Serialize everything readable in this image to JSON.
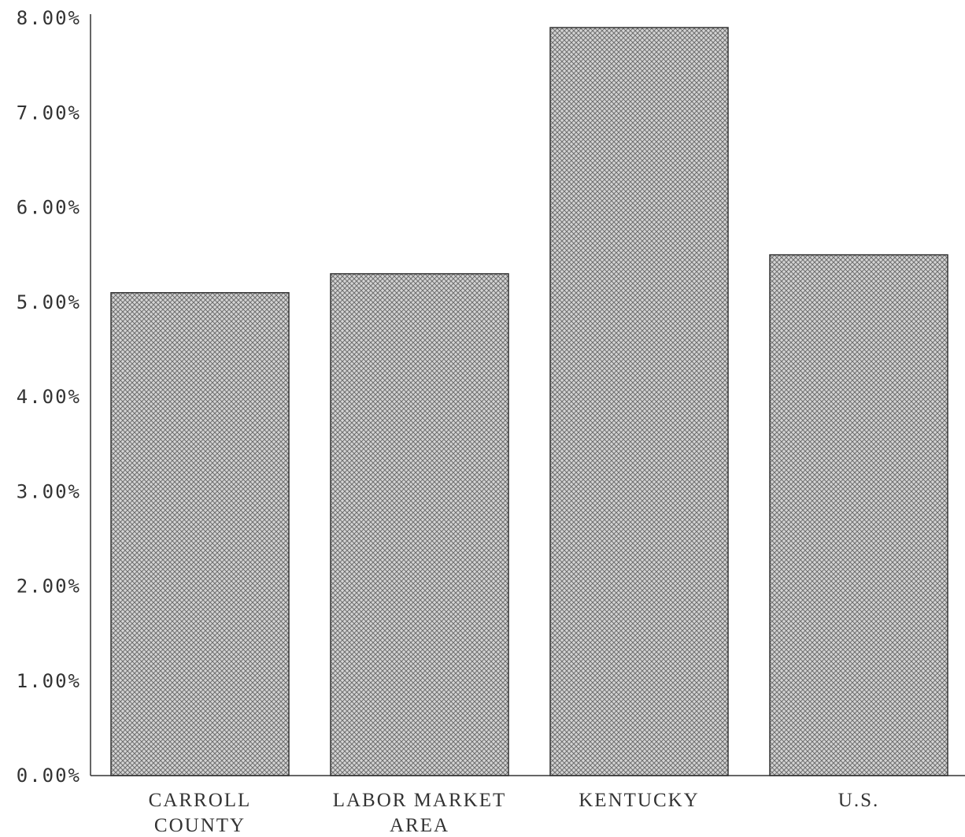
{
  "chart_data": {
    "type": "bar",
    "title": "",
    "xlabel": "",
    "ylabel": "",
    "categories": [
      [
        "CARROLL",
        "COUNTY"
      ],
      [
        "LABOR MARKET",
        "AREA"
      ],
      [
        "KENTUCKY"
      ],
      [
        "U.S."
      ]
    ],
    "values": [
      5.1,
      5.3,
      7.9,
      5.5
    ],
    "ylim": [
      0,
      8
    ],
    "yticks": [
      "0.00%",
      "1.00%",
      "2.00%",
      "3.00%",
      "4.00%",
      "5.00%",
      "6.00%",
      "7.00%",
      "8.00%"
    ],
    "grid": false,
    "legend": "none",
    "bar_fill": "crosshatch",
    "colors": {
      "bar_pattern": "#8a8a8a",
      "stroke": "#333333",
      "text": "#333333"
    }
  }
}
